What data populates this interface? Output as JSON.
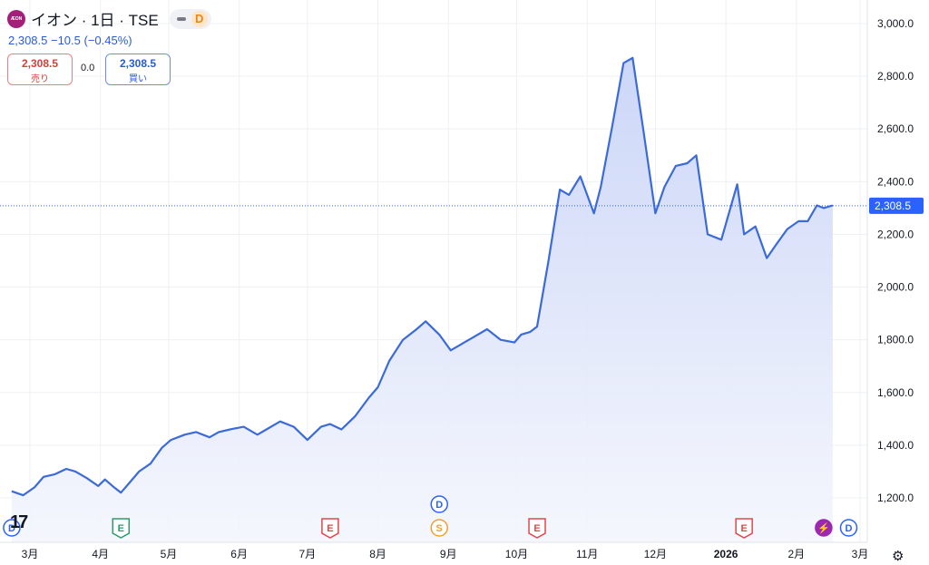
{
  "header": {
    "logo_text": "ÆON",
    "title": "イオン · 1日 · TSE",
    "badge": "D",
    "quote_line": "2,308.5  −10.5 (−0.45%)",
    "sell": {
      "value": "2,308.5",
      "label": "売り"
    },
    "spread": "0.0",
    "buy": {
      "value": "2,308.5",
      "label": "買い"
    }
  },
  "colors": {
    "line": "#3b6ad9",
    "fill_top": "#c9d4f7",
    "fill_bottom": "#f4f6fd",
    "grid": "#eef0f3",
    "price_tag": "#2962ff"
  },
  "chart_data": {
    "type": "area",
    "x": [
      "2025-02-21",
      "2025-02-26",
      "2025-03-03",
      "2025-03-07",
      "2025-03-12",
      "2025-03-17",
      "2025-03-21",
      "2025-03-26",
      "2025-03-31",
      "2025-04-03",
      "2025-04-07",
      "2025-04-10",
      "2025-04-14",
      "2025-04-18",
      "2025-04-23",
      "2025-04-28",
      "2025-05-02",
      "2025-05-08",
      "2025-05-13",
      "2025-05-19",
      "2025-05-23",
      "2025-05-28",
      "2025-06-03",
      "2025-06-09",
      "2025-06-13",
      "2025-06-19",
      "2025-06-25",
      "2025-07-01",
      "2025-07-07",
      "2025-07-11",
      "2025-07-16",
      "2025-07-22",
      "2025-07-28",
      "2025-08-01",
      "2025-08-06",
      "2025-08-12",
      "2025-08-18",
      "2025-08-22",
      "2025-08-28",
      "2025-09-02",
      "2025-09-08",
      "2025-09-12",
      "2025-09-18",
      "2025-09-24",
      "2025-09-30",
      "2025-10-03",
      "2025-10-07",
      "2025-10-10",
      "2025-10-15",
      "2025-10-20",
      "2025-10-24",
      "2025-10-29",
      "2025-11-04",
      "2025-11-07",
      "2025-11-12",
      "2025-11-17",
      "2025-11-21",
      "2025-11-26",
      "2025-12-01",
      "2025-12-05",
      "2025-12-10",
      "2025-12-15",
      "2025-12-19",
      "2025-12-24",
      "2025-12-30",
      "2026-01-06",
      "2026-01-09",
      "2026-01-14",
      "2026-01-19",
      "2026-01-23",
      "2026-01-28",
      "2026-02-02",
      "2026-02-06",
      "2026-02-10",
      "2026-02-13",
      "2026-02-17"
    ],
    "values": [
      1225,
      1210,
      1240,
      1280,
      1290,
      1310,
      1300,
      1275,
      1245,
      1270,
      1240,
      1220,
      1260,
      1300,
      1330,
      1390,
      1420,
      1440,
      1450,
      1430,
      1450,
      1460,
      1470,
      1440,
      1460,
      1490,
      1470,
      1420,
      1470,
      1480,
      1460,
      1510,
      1580,
      1620,
      1720,
      1800,
      1840,
      1870,
      1820,
      1760,
      1790,
      1810,
      1840,
      1800,
      1790,
      1820,
      1830,
      1850,
      2100,
      2370,
      2350,
      2420,
      2280,
      2380,
      2610,
      2850,
      2870,
      2580,
      2280,
      2380,
      2460,
      2470,
      2500,
      2200,
      2180,
      2390,
      2200,
      2230,
      2110,
      2160,
      2220,
      2250,
      2250,
      2310,
      2300,
      2310
    ],
    "title": "イオン · 1日 · TSE",
    "xlabel": "",
    "ylabel": "",
    "ylim": [
      1100,
      3050
    ],
    "y_ticks": [
      "1,200.0",
      "1,400.0",
      "1,600.0",
      "1,800.0",
      "2,000.0",
      "2,200.0",
      "2,400.0",
      "2,600.0",
      "2,800.0",
      "3,000.0"
    ],
    "x_ticks": [
      "3月",
      "4月",
      "5月",
      "6月",
      "7月",
      "8月",
      "9月",
      "10月",
      "11月",
      "12月",
      "2026",
      "2月",
      "3月"
    ],
    "last_price_label": "2,308.5",
    "grid": true,
    "event_markers": [
      {
        "label": "D",
        "kind": "dividend",
        "date": "2025-02-21"
      },
      {
        "label": "E",
        "kind": "earnings",
        "date": "2025-04-10"
      },
      {
        "label": "E",
        "kind": "earnings",
        "date": "2025-07-11"
      },
      {
        "label": "D",
        "kind": "dividend",
        "date": "2025-08-28"
      },
      {
        "label": "S",
        "kind": "split",
        "date": "2025-08-28"
      },
      {
        "label": "E",
        "kind": "earnings",
        "date": "2025-10-10"
      },
      {
        "label": "E",
        "kind": "earnings",
        "date": "2026-01-09"
      },
      {
        "label": "⚡",
        "kind": "news",
        "date": "2026-02-13"
      },
      {
        "label": "D",
        "kind": "dividend",
        "date": "2026-02-24"
      }
    ]
  },
  "footer": {
    "tv_logo": "17",
    "settings_icon": "⚙"
  }
}
